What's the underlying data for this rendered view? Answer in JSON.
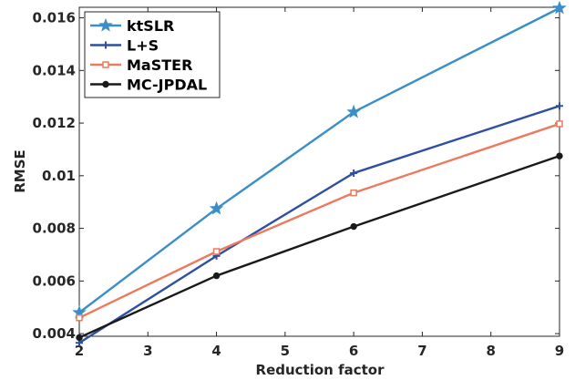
{
  "chart_data": {
    "type": "line",
    "xlabel": "Reduction factor",
    "ylabel": "RMSE",
    "xlim": [
      2,
      9
    ],
    "ylim": [
      0.0039,
      0.0164
    ],
    "xticks": [
      2,
      3,
      4,
      5,
      6,
      7,
      8,
      9
    ],
    "xtick_labels": [
      "2",
      "3",
      "4",
      "5",
      "6",
      "7",
      "8",
      "9"
    ],
    "yticks": [
      0.004,
      0.006,
      0.008,
      0.01,
      0.012,
      0.014,
      0.016
    ],
    "ytick_labels": [
      "0.004",
      "0.006",
      "0.008",
      "0.01",
      "0.012",
      "0.014",
      "0.016"
    ],
    "grid": false,
    "legend_position": "top-left",
    "x": [
      2,
      4,
      6,
      9
    ],
    "series": [
      {
        "name": "ktSLR",
        "values": [
          0.0048,
          0.00875,
          0.01242,
          0.01637
        ],
        "color": "#3b8fc9",
        "marker": "star"
      },
      {
        "name": "L+S",
        "values": [
          0.00365,
          0.00695,
          0.0101,
          0.01265
        ],
        "color": "#2f4fa0",
        "marker": "plus"
      },
      {
        "name": "MaSTER",
        "values": [
          0.0046,
          0.00712,
          0.00935,
          0.01197
        ],
        "color": "#eb7a5e",
        "marker": "square"
      },
      {
        "name": "MC-JPDAL",
        "values": [
          0.00385,
          0.0062,
          0.00807,
          0.01075
        ],
        "color": "#1a1a1a",
        "marker": "circle"
      }
    ]
  }
}
